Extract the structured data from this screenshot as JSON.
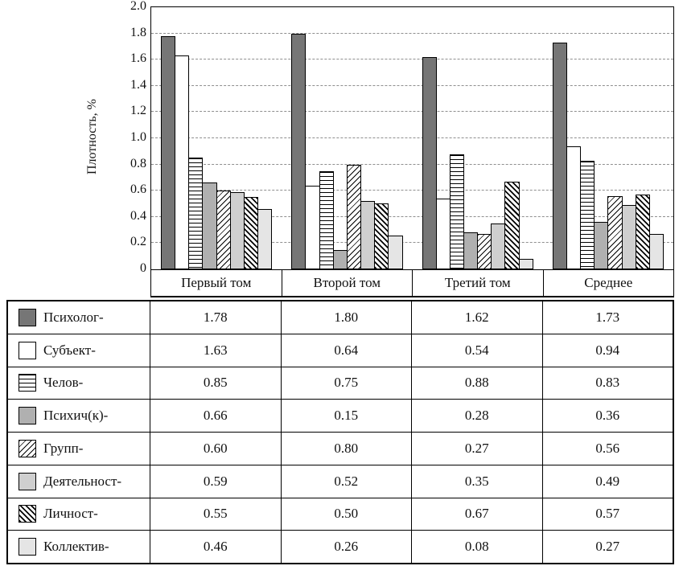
{
  "chart_data": {
    "type": "bar",
    "title": "",
    "xlabel": "",
    "ylabel": "Плотность, %",
    "ylim": [
      0,
      2.0
    ],
    "ytick_step": 0.2,
    "ytick_labels": [
      "2.0",
      "1.8",
      "1.6",
      "1.4",
      "1.2",
      "1.0",
      "0.8",
      "0.6",
      "0.4",
      "0.2",
      "0"
    ],
    "grid": "horizontal dashed gray lines at each 0.2",
    "legend_position": "left column of table below chart",
    "categories": [
      "Первый том",
      "Второй том",
      "Третий том",
      "Среднее"
    ],
    "series": [
      {
        "name": "Психолог-",
        "style": "solid-dark",
        "values": [
          1.78,
          1.8,
          1.62,
          1.73
        ]
      },
      {
        "name": "Субъект-",
        "style": "solid-white",
        "values": [
          1.63,
          0.64,
          0.54,
          0.94
        ]
      },
      {
        "name": "Челов-",
        "style": "hatch-horizontal",
        "values": [
          0.85,
          0.75,
          0.88,
          0.83
        ]
      },
      {
        "name": "Психич(к)-",
        "style": "solid-medium-gray",
        "values": [
          0.66,
          0.15,
          0.28,
          0.36
        ]
      },
      {
        "name": "Групп-",
        "style": "hatch-diagonal-forward",
        "values": [
          0.6,
          0.8,
          0.27,
          0.56
        ]
      },
      {
        "name": "Деятельност-",
        "style": "solid-light-gray",
        "values": [
          0.59,
          0.52,
          0.35,
          0.49
        ]
      },
      {
        "name": "Личност-",
        "style": "hatch-diagonal-back",
        "values": [
          0.55,
          0.5,
          0.67,
          0.57
        ]
      },
      {
        "name": "Коллектив-",
        "style": "solid-lightest-gray",
        "values": [
          0.46,
          0.26,
          0.08,
          0.27
        ]
      }
    ]
  },
  "table": {
    "header": [
      "Первый том",
      "Второй том",
      "Третий том",
      "Среднее"
    ],
    "rows": [
      {
        "label": "Психолог-",
        "swatch": "solid-dark",
        "values": [
          "1.78",
          "1.80",
          "1.62",
          "1.73"
        ]
      },
      {
        "label": "Субъект-",
        "swatch": "solid-white",
        "values": [
          "1.63",
          "0.64",
          "0.54",
          "0.94"
        ]
      },
      {
        "label": "Челов-",
        "swatch": "hatch-horizontal",
        "values": [
          "0.85",
          "0.75",
          "0.88",
          "0.83"
        ]
      },
      {
        "label": "Психич(к)-",
        "swatch": "solid-medium-gray",
        "values": [
          "0.66",
          "0.15",
          "0.28",
          "0.36"
        ]
      },
      {
        "label": "Групп-",
        "swatch": "hatch-diagonal-forward",
        "values": [
          "0.60",
          "0.80",
          "0.27",
          "0.56"
        ]
      },
      {
        "label": "Деятельност-",
        "swatch": "solid-light-gray",
        "values": [
          "0.59",
          "0.52",
          "0.35",
          "0.49"
        ]
      },
      {
        "label": "Личност-",
        "swatch": "hatch-diagonal-back",
        "values": [
          "0.55",
          "0.50",
          "0.67",
          "0.57"
        ]
      },
      {
        "label": "Коллектив-",
        "swatch": "solid-lightest-gray",
        "values": [
          "0.46",
          "0.26",
          "0.08",
          "0.27"
        ]
      }
    ]
  },
  "colors": {
    "dark_gray": "#767676",
    "medium_gray": "#b0b0b0",
    "light_gray": "#cfcfcf",
    "lightest_gray": "#e5e5e5",
    "white": "#ffffff",
    "bar_border": "#000000",
    "grid_line": "#8f8f8f"
  }
}
